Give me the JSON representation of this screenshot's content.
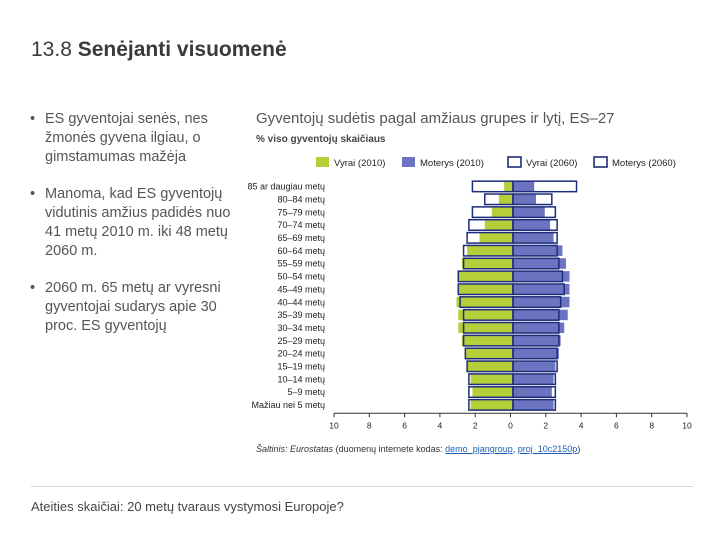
{
  "slide": {
    "number": "13.8",
    "title": "Senėjanti visuomenė",
    "footer": "Ateities skaičiai: 20 metų tvaraus vystymosi Europoje?"
  },
  "bullets": [
    "ES gyventojai senės, nes žmonės gyvena ilgiau, o gimstamumas mažėja",
    "Manoma, kad ES gyventojų vidutinis amžius padidės nuo 41 metų 2010 m. iki 48 metų 2060 m.",
    "2060 m. 65 metų ar vyresni gyventojai sudarys apie 30 proc. ES gyventojų"
  ],
  "bullet_marker": "•",
  "source": {
    "label": "Šaltinis:",
    "org": "Eurostatas",
    "text": "(duomenų internete kodas:",
    "link1": "demo_pjangroup",
    "sep": ",",
    "link2": "proj_10c2150p",
    "end": ")"
  },
  "colors": {
    "men_2010": "#b5cf3a",
    "women_2010": "#6a74c1",
    "outline_2060": "#1e2d7a",
    "axis": "#333333"
  },
  "chart_data": {
    "type": "bar",
    "orientation": "horizontal-population-pyramid",
    "title": "Gyventojų sudėtis pagal amžiaus grupes ir lytį, ES–27",
    "subtitle": "% viso gyventojų skaičiaus",
    "categories": [
      "85 ar daugiau metų",
      "80–84 metų",
      "75–79 metų",
      "70–74 metų",
      "65–69 metų",
      "60–64 metų",
      "55–59 metų",
      "50–54 metų",
      "45–49 metų",
      "40–44 metų",
      "35–39 metų",
      "30–34 metų",
      "25–29 metų",
      "20–24 metų",
      "15–19 metų",
      "10–14 metų",
      "5–9 metų",
      "Mažiau nei 5 metų"
    ],
    "series": [
      {
        "name": "Vyrai (2010)",
        "side": "left",
        "style": "filled",
        "values": [
          0.5,
          0.8,
          1.2,
          1.6,
          1.9,
          2.6,
          2.9,
          3.1,
          3.1,
          3.2,
          3.1,
          3.1,
          2.9,
          2.7,
          2.6,
          2.4,
          2.3,
          2.4
        ]
      },
      {
        "name": "Moterys (2010)",
        "side": "right",
        "style": "filled",
        "values": [
          1.2,
          1.3,
          1.8,
          2.1,
          2.3,
          2.8,
          3.0,
          3.2,
          3.2,
          3.2,
          3.1,
          2.9,
          2.7,
          2.6,
          2.4,
          2.3,
          2.2,
          2.3
        ]
      },
      {
        "name": "Vyrai (2060)",
        "side": "left",
        "style": "outline",
        "values": [
          2.3,
          1.6,
          2.3,
          2.5,
          2.6,
          2.8,
          2.8,
          3.1,
          3.1,
          3.0,
          2.8,
          2.8,
          2.8,
          2.7,
          2.6,
          2.5,
          2.5,
          2.5
        ]
      },
      {
        "name": "Moterys (2060)",
        "side": "right",
        "style": "outline",
        "values": [
          3.6,
          2.2,
          2.4,
          2.5,
          2.5,
          2.5,
          2.6,
          2.8,
          2.9,
          2.7,
          2.6,
          2.6,
          2.6,
          2.5,
          2.5,
          2.4,
          2.4,
          2.4
        ]
      }
    ],
    "xlim": [
      -10,
      10
    ],
    "x_ticks": [
      "10",
      "8",
      "6",
      "4",
      "2",
      "0",
      "2",
      "4",
      "6",
      "8",
      "10"
    ],
    "legend_position": "top",
    "grid": false
  }
}
